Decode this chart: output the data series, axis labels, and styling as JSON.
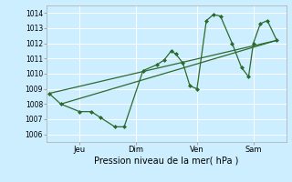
{
  "title": "",
  "xlabel": "Pression niveau de la mer( hPa )",
  "bg_color": "#cceeff",
  "grid_color": "#ffffff",
  "line_color": "#2d6a2d",
  "marker": "D",
  "markersize": 2.0,
  "linewidth": 0.9,
  "ylim": [
    1005.5,
    1014.5
  ],
  "yticks": [
    1006,
    1007,
    1008,
    1009,
    1010,
    1011,
    1012,
    1013,
    1014
  ],
  "xtick_positions": [
    0.13,
    0.37,
    0.63,
    0.87
  ],
  "xtick_labels": [
    "Jeu",
    "Dim",
    "Ven",
    "Sam"
  ],
  "xlim": [
    -0.01,
    1.01
  ],
  "series": [
    [
      0.0,
      1008.7,
      0.05,
      1008.0,
      0.13,
      1007.5,
      0.18,
      1007.5,
      0.22,
      1007.1,
      0.28,
      1006.5,
      0.32,
      1006.5,
      0.4,
      1010.2,
      0.46,
      1010.6,
      0.49,
      1010.9,
      0.52,
      1011.5,
      0.54,
      1011.3,
      0.57,
      1010.7,
      0.6,
      1009.2,
      0.63,
      1009.0,
      0.67,
      1013.5,
      0.7,
      1013.9,
      0.73,
      1013.8,
      0.78,
      1012.0,
      0.82,
      1010.4,
      0.85,
      1009.8,
      0.87,
      1012.0,
      0.9,
      1013.3,
      0.93,
      1013.5,
      0.97,
      1012.2
    ],
    [
      0.0,
      1008.7,
      0.97,
      1012.2
    ],
    [
      0.05,
      1008.0,
      0.97,
      1012.2
    ]
  ]
}
